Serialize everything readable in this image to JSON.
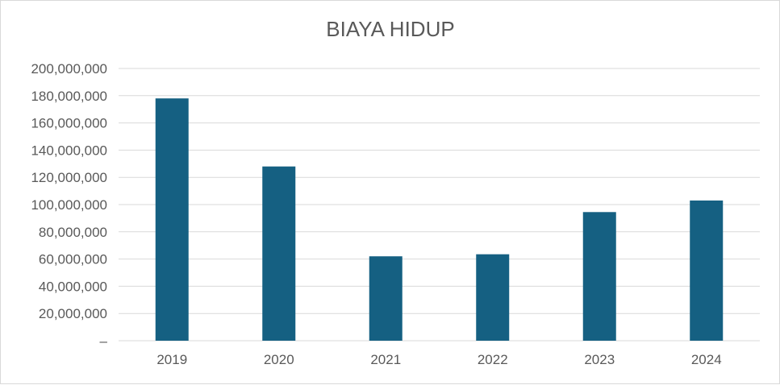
{
  "chart_data": {
    "type": "bar",
    "title": "BIAYA HIDUP",
    "xlabel": "",
    "ylabel": "",
    "categories": [
      "2019",
      "2020",
      "2021",
      "2022",
      "2023",
      "2024"
    ],
    "values": [
      178000000,
      128000000,
      62000000,
      63500000,
      94500000,
      103000000
    ],
    "ylim": [
      0,
      200000000
    ],
    "yticks": [
      0,
      20000000,
      40000000,
      60000000,
      80000000,
      100000000,
      120000000,
      140000000,
      160000000,
      180000000,
      200000000
    ],
    "ytick_labels": [
      "–",
      "20,000,000",
      "40,000,000",
      "60,000,000",
      "80,000,000",
      "100,000,000",
      "120,000,000",
      "140,000,000",
      "160,000,000",
      "180,000,000",
      "200,000,000"
    ],
    "bar_color": "#156082",
    "grid": true,
    "legend": "none"
  }
}
